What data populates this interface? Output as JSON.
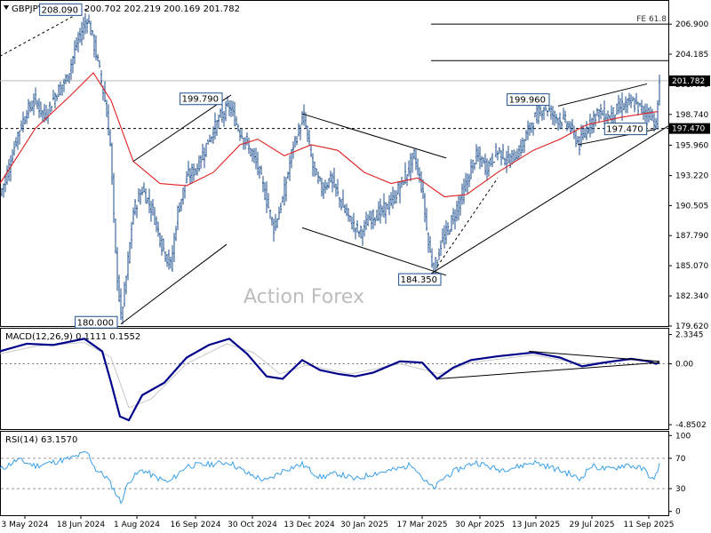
{
  "header": {
    "symbol": "GBPJPY,Daily",
    "ohlc": "200.702 202.219 200.169 201.782"
  },
  "watermark": "Action Forex",
  "colors": {
    "price_bars": "#1d4f8c",
    "ma_line": "#e02020",
    "macd_line": "#00008b",
    "signal_line": "#c8c8c8",
    "rsi_line": "#3aa0e8",
    "grid": "#c8c8c8",
    "trendline": "#000000",
    "text": "#000000"
  },
  "chart_data": [
    {
      "panel": "price",
      "type": "ohlc",
      "ylim": [
        179.62,
        209.0
      ],
      "y_ticks": [
        "206.900",
        "204.185",
        "201.470",
        "198.740",
        "195.960",
        "193.220",
        "190.505",
        "187.790",
        "185.070",
        "182.340",
        "179.620"
      ],
      "x_ticks": [
        "3 May 2024",
        "18 Jun 2024",
        "1 Aug 2024",
        "16 Sep 2024",
        "30 Oct 2024",
        "13 Dec 2024",
        "30 Jan 2025",
        "17 Mar 2025",
        "30 Apr 2025",
        "13 Jun 2025",
        "29 Jul 2025",
        "11 Sep 2025"
      ],
      "close_path": [
        {
          "x": 0,
          "y": 191.5
        },
        {
          "x": 10,
          "y": 194.0
        },
        {
          "x": 20,
          "y": 197.0
        },
        {
          "x": 30,
          "y": 199.0
        },
        {
          "x": 40,
          "y": 200.0
        },
        {
          "x": 50,
          "y": 198.5
        },
        {
          "x": 62,
          "y": 200.5
        },
        {
          "x": 75,
          "y": 202.0
        },
        {
          "x": 88,
          "y": 205.5
        },
        {
          "x": 98,
          "y": 207.5
        },
        {
          "x": 103,
          "y": 206.0
        },
        {
          "x": 110,
          "y": 203.5
        },
        {
          "x": 118,
          "y": 200.0
        },
        {
          "x": 124,
          "y": 196.0
        },
        {
          "x": 130,
          "y": 186.0
        },
        {
          "x": 136,
          "y": 180.3
        },
        {
          "x": 142,
          "y": 184.0
        },
        {
          "x": 150,
          "y": 190.0
        },
        {
          "x": 160,
          "y": 192.0
        },
        {
          "x": 172,
          "y": 190.0
        },
        {
          "x": 182,
          "y": 187.0
        },
        {
          "x": 192,
          "y": 185.0
        },
        {
          "x": 200,
          "y": 190.0
        },
        {
          "x": 210,
          "y": 193.0
        },
        {
          "x": 222,
          "y": 194.0
        },
        {
          "x": 235,
          "y": 196.5
        },
        {
          "x": 248,
          "y": 198.5
        },
        {
          "x": 258,
          "y": 199.5
        },
        {
          "x": 268,
          "y": 197.5
        },
        {
          "x": 278,
          "y": 196.0
        },
        {
          "x": 290,
          "y": 194.0
        },
        {
          "x": 300,
          "y": 191.0
        },
        {
          "x": 308,
          "y": 188.5
        },
        {
          "x": 318,
          "y": 191.0
        },
        {
          "x": 330,
          "y": 196.0
        },
        {
          "x": 342,
          "y": 198.5
        },
        {
          "x": 352,
          "y": 194.0
        },
        {
          "x": 362,
          "y": 192.0
        },
        {
          "x": 372,
          "y": 193.0
        },
        {
          "x": 385,
          "y": 190.5
        },
        {
          "x": 395,
          "y": 189.0
        },
        {
          "x": 405,
          "y": 188.0
        },
        {
          "x": 418,
          "y": 189.5
        },
        {
          "x": 430,
          "y": 190.0
        },
        {
          "x": 442,
          "y": 191.0
        },
        {
          "x": 455,
          "y": 193.0
        },
        {
          "x": 466,
          "y": 195.0
        },
        {
          "x": 475,
          "y": 192.0
        },
        {
          "x": 482,
          "y": 187.0
        },
        {
          "x": 488,
          "y": 184.6
        },
        {
          "x": 496,
          "y": 187.0
        },
        {
          "x": 505,
          "y": 188.5
        },
        {
          "x": 515,
          "y": 190.5
        },
        {
          "x": 525,
          "y": 192.5
        },
        {
          "x": 535,
          "y": 195.0
        },
        {
          "x": 548,
          "y": 194.0
        },
        {
          "x": 560,
          "y": 195.5
        },
        {
          "x": 572,
          "y": 194.5
        },
        {
          "x": 585,
          "y": 195.5
        },
        {
          "x": 598,
          "y": 198.0
        },
        {
          "x": 612,
          "y": 199.5
        },
        {
          "x": 625,
          "y": 198.5
        },
        {
          "x": 638,
          "y": 198.0
        },
        {
          "x": 645,
          "y": 197.0
        },
        {
          "x": 652,
          "y": 196.0
        },
        {
          "x": 660,
          "y": 197.5
        },
        {
          "x": 672,
          "y": 199.0
        },
        {
          "x": 685,
          "y": 198.5
        },
        {
          "x": 700,
          "y": 199.5
        },
        {
          "x": 712,
          "y": 199.8
        },
        {
          "x": 725,
          "y": 199.0
        },
        {
          "x": 733,
          "y": 198.8
        },
        {
          "x": 738,
          "y": 197.6
        },
        {
          "x": 742,
          "y": 201.8
        }
      ],
      "moving_average": [
        {
          "x": 0,
          "y": 192.5
        },
        {
          "x": 40,
          "y": 197.5
        },
        {
          "x": 80,
          "y": 200.5
        },
        {
          "x": 105,
          "y": 202.5
        },
        {
          "x": 125,
          "y": 200.0
        },
        {
          "x": 150,
          "y": 194.5
        },
        {
          "x": 180,
          "y": 192.5
        },
        {
          "x": 210,
          "y": 192.3
        },
        {
          "x": 240,
          "y": 193.5
        },
        {
          "x": 270,
          "y": 196.0
        },
        {
          "x": 290,
          "y": 196.5
        },
        {
          "x": 320,
          "y": 195.0
        },
        {
          "x": 350,
          "y": 196.0
        },
        {
          "x": 380,
          "y": 195.5
        },
        {
          "x": 410,
          "y": 193.5
        },
        {
          "x": 440,
          "y": 192.5
        },
        {
          "x": 470,
          "y": 193.0
        },
        {
          "x": 500,
          "y": 191.3
        },
        {
          "x": 525,
          "y": 191.5
        },
        {
          "x": 560,
          "y": 193.5
        },
        {
          "x": 600,
          "y": 195.5
        },
        {
          "x": 630,
          "y": 196.5
        },
        {
          "x": 660,
          "y": 197.8
        },
        {
          "x": 700,
          "y": 198.5
        },
        {
          "x": 740,
          "y": 199.0
        }
      ],
      "level_lines": [
        {
          "label": "FE 61.8",
          "y": 206.9,
          "from_x": 485
        },
        {
          "label": "",
          "y": 203.6,
          "from_x": 485
        },
        {
          "label": "",
          "y": 201.782,
          "from_x": 0,
          "color": "#bbbbbb"
        },
        {
          "label": "",
          "y": 197.47,
          "from_x": 0,
          "dashed": true
        }
      ],
      "annotations": [
        {
          "text": "208.090",
          "x": 98,
          "y": 208.09
        },
        {
          "text": "199.790",
          "x": 256,
          "y": 199.79
        },
        {
          "text": "180.000",
          "x": 136,
          "y": 180.0
        },
        {
          "text": "184.350",
          "x": 488,
          "y": 184.35
        },
        {
          "text": "199.960",
          "x": 620,
          "y": 199.96
        },
        {
          "text": "197.470",
          "x": 700,
          "y": 197.47
        }
      ],
      "right_labels": [
        {
          "text": "201.782",
          "y": 201.782
        },
        {
          "text": "197.470",
          "y": 197.47
        }
      ],
      "trendlines": [
        {
          "x1": 0,
          "y1": 204.0,
          "x2": 98,
          "y2": 208.3,
          "dashed": true
        },
        {
          "x1": 136,
          "y1": 179.8,
          "x2": 255,
          "y2": 187.0
        },
        {
          "x1": 150,
          "y1": 194.5,
          "x2": 260,
          "y2": 200.5
        },
        {
          "x1": 340,
          "y1": 198.8,
          "x2": 502,
          "y2": 194.8
        },
        {
          "x1": 340,
          "y1": 188.5,
          "x2": 502,
          "y2": 184.2
        },
        {
          "x1": 485,
          "y1": 184.35,
          "x2": 752,
          "y2": 197.7
        },
        {
          "x1": 492,
          "y1": 185.0,
          "x2": 560,
          "y2": 193.0,
          "dashed": true
        },
        {
          "x1": 628,
          "y1": 199.5,
          "x2": 728,
          "y2": 201.5
        },
        {
          "x1": 650,
          "y1": 196.0,
          "x2": 738,
          "y2": 197.4
        }
      ]
    },
    {
      "panel": "macd",
      "type": "line",
      "title": "MACD(12,26,9) 0.1111 0.1552",
      "ylim": [
        -5.2,
        2.8
      ],
      "y_ticks": [
        "2.3345",
        "0.00",
        "-4.8502"
      ],
      "series": [
        {
          "name": "MACD",
          "points": [
            {
              "x": 0,
              "y": 1.0
            },
            {
              "x": 30,
              "y": 1.6
            },
            {
              "x": 60,
              "y": 1.5
            },
            {
              "x": 95,
              "y": 2.0
            },
            {
              "x": 115,
              "y": 1.0
            },
            {
              "x": 125,
              "y": -1.5
            },
            {
              "x": 135,
              "y": -4.2
            },
            {
              "x": 145,
              "y": -4.5
            },
            {
              "x": 160,
              "y": -2.5
            },
            {
              "x": 185,
              "y": -1.5
            },
            {
              "x": 210,
              "y": 0.5
            },
            {
              "x": 235,
              "y": 1.5
            },
            {
              "x": 258,
              "y": 2.0
            },
            {
              "x": 278,
              "y": 0.8
            },
            {
              "x": 300,
              "y": -1.0
            },
            {
              "x": 318,
              "y": -1.2
            },
            {
              "x": 340,
              "y": 0.3
            },
            {
              "x": 360,
              "y": -0.5
            },
            {
              "x": 380,
              "y": -0.8
            },
            {
              "x": 400,
              "y": -1.0
            },
            {
              "x": 420,
              "y": -0.7
            },
            {
              "x": 450,
              "y": 0.2
            },
            {
              "x": 475,
              "y": 0.1
            },
            {
              "x": 492,
              "y": -1.2
            },
            {
              "x": 510,
              "y": -0.3
            },
            {
              "x": 530,
              "y": 0.3
            },
            {
              "x": 560,
              "y": 0.6
            },
            {
              "x": 600,
              "y": 0.9
            },
            {
              "x": 630,
              "y": 0.5
            },
            {
              "x": 655,
              "y": -0.2
            },
            {
              "x": 680,
              "y": 0.1
            },
            {
              "x": 710,
              "y": 0.4
            },
            {
              "x": 730,
              "y": 0.2
            },
            {
              "x": 738,
              "y": 0.0
            },
            {
              "x": 742,
              "y": 0.11
            }
          ]
        },
        {
          "name": "Signal",
          "points": [
            {
              "x": 0,
              "y": 0.8
            },
            {
              "x": 40,
              "y": 1.4
            },
            {
              "x": 95,
              "y": 1.7
            },
            {
              "x": 125,
              "y": 0.5
            },
            {
              "x": 145,
              "y": -3.5
            },
            {
              "x": 170,
              "y": -2.8
            },
            {
              "x": 210,
              "y": 0.0
            },
            {
              "x": 255,
              "y": 1.6
            },
            {
              "x": 285,
              "y": 0.9
            },
            {
              "x": 315,
              "y": -0.8
            },
            {
              "x": 345,
              "y": -0.1
            },
            {
              "x": 395,
              "y": -0.8
            },
            {
              "x": 450,
              "y": 0.0
            },
            {
              "x": 495,
              "y": -0.8
            },
            {
              "x": 530,
              "y": 0.1
            },
            {
              "x": 600,
              "y": 0.7
            },
            {
              "x": 655,
              "y": 0.0
            },
            {
              "x": 710,
              "y": 0.3
            },
            {
              "x": 742,
              "y": 0.16
            }
          ]
        }
      ],
      "trendlines": [
        {
          "x1": 492,
          "y1": -1.2,
          "x2": 742,
          "y2": 0.1
        },
        {
          "x1": 595,
          "y1": 1.0,
          "x2": 742,
          "y2": 0.2
        }
      ]
    },
    {
      "panel": "rsi",
      "type": "line",
      "title": "RSI(14) 63.1570",
      "ylim": [
        0,
        100
      ],
      "y_ticks": [
        "100",
        "70",
        "30",
        "0"
      ],
      "levels": [
        70,
        30
      ],
      "series": [
        {
          "name": "RSI",
          "points": [
            {
              "x": 0,
              "y": 55
            },
            {
              "x": 20,
              "y": 68
            },
            {
              "x": 40,
              "y": 60
            },
            {
              "x": 60,
              "y": 65
            },
            {
              "x": 80,
              "y": 70
            },
            {
              "x": 98,
              "y": 78
            },
            {
              "x": 108,
              "y": 55
            },
            {
              "x": 120,
              "y": 45
            },
            {
              "x": 130,
              "y": 25
            },
            {
              "x": 136,
              "y": 12
            },
            {
              "x": 145,
              "y": 40
            },
            {
              "x": 160,
              "y": 55
            },
            {
              "x": 175,
              "y": 45
            },
            {
              "x": 190,
              "y": 38
            },
            {
              "x": 210,
              "y": 60
            },
            {
              "x": 235,
              "y": 62
            },
            {
              "x": 258,
              "y": 65
            },
            {
              "x": 278,
              "y": 50
            },
            {
              "x": 300,
              "y": 40
            },
            {
              "x": 320,
              "y": 55
            },
            {
              "x": 340,
              "y": 62
            },
            {
              "x": 360,
              "y": 45
            },
            {
              "x": 380,
              "y": 50
            },
            {
              "x": 400,
              "y": 42
            },
            {
              "x": 420,
              "y": 50
            },
            {
              "x": 445,
              "y": 55
            },
            {
              "x": 465,
              "y": 62
            },
            {
              "x": 478,
              "y": 40
            },
            {
              "x": 488,
              "y": 30
            },
            {
              "x": 500,
              "y": 45
            },
            {
              "x": 515,
              "y": 55
            },
            {
              "x": 535,
              "y": 65
            },
            {
              "x": 560,
              "y": 55
            },
            {
              "x": 580,
              "y": 58
            },
            {
              "x": 600,
              "y": 65
            },
            {
              "x": 620,
              "y": 58
            },
            {
              "x": 640,
              "y": 50
            },
            {
              "x": 652,
              "y": 42
            },
            {
              "x": 665,
              "y": 60
            },
            {
              "x": 685,
              "y": 55
            },
            {
              "x": 705,
              "y": 62
            },
            {
              "x": 725,
              "y": 55
            },
            {
              "x": 736,
              "y": 40
            },
            {
              "x": 742,
              "y": 63
            }
          ]
        }
      ]
    }
  ]
}
